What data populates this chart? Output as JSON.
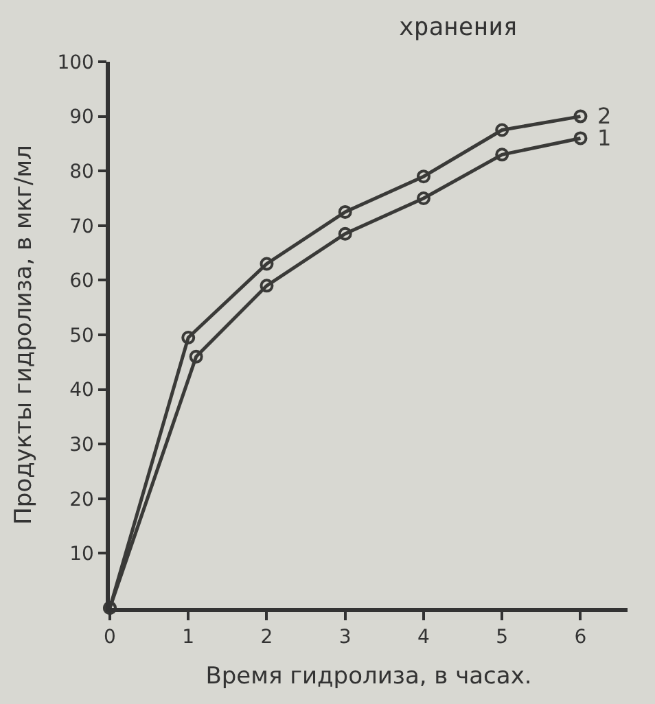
{
  "chart_data": {
    "type": "line",
    "title": "хранения",
    "xlabel": "Время гидролиза, в часах.",
    "ylabel": "Продукты гидролиза, в мкг/мл",
    "xlim": [
      0,
      6.6
    ],
    "xticks": [
      0,
      1,
      2,
      3,
      4,
      5,
      6
    ],
    "ylim": [
      0,
      100
    ],
    "yticks": [
      10,
      20,
      30,
      40,
      50,
      60,
      70,
      80,
      90,
      100
    ],
    "series": [
      {
        "name": "1",
        "color": "#3a3a38",
        "x": [
          0,
          1.1,
          2,
          3,
          4,
          5,
          6
        ],
        "values": [
          0,
          46,
          59,
          68.5,
          75,
          83,
          86
        ]
      },
      {
        "name": "2",
        "color": "#3a3a38",
        "x": [
          0,
          1,
          2,
          3,
          4,
          5,
          6
        ],
        "values": [
          0,
          49.5,
          63,
          72.5,
          79,
          87.5,
          90
        ]
      }
    ],
    "marker": "circle",
    "line_style": "solid",
    "grid": false,
    "legend": false
  }
}
